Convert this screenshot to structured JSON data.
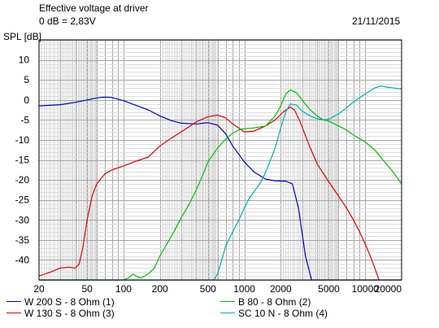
{
  "header": {
    "title": "Effective voltage at driver",
    "reference": "0 dB = 2,83V",
    "date": "21/11/2015"
  },
  "chart_data": {
    "type": "line",
    "x_scale": "log",
    "ylabel": "SPL [dB]",
    "xlim": [
      20,
      20000
    ],
    "ylim": [
      -45,
      15
    ],
    "x_ticks": [
      "20",
      "50",
      "100",
      "200",
      "500",
      "1000",
      "2000",
      "5000",
      "10000",
      "20000"
    ],
    "y_ticks": [
      "10",
      "5",
      "0",
      "-5",
      "-10",
      "-15",
      "-20",
      "-25",
      "-30",
      "-35",
      "-40"
    ],
    "grid": true,
    "legend_position": "bottom",
    "series": [
      {
        "name": "W 200 S - 8 Ohm (1)",
        "color": "#0000c0",
        "points": [
          [
            20,
            -1.5
          ],
          [
            30,
            -1.2
          ],
          [
            40,
            -0.6
          ],
          [
            50,
            0.0
          ],
          [
            60,
            0.5
          ],
          [
            70,
            0.7
          ],
          [
            80,
            0.6
          ],
          [
            100,
            -0.2
          ],
          [
            130,
            -1.5
          ],
          [
            160,
            -2.5
          ],
          [
            200,
            -4.0
          ],
          [
            250,
            -5.2
          ],
          [
            300,
            -5.8
          ],
          [
            400,
            -6.0
          ],
          [
            500,
            -5.7
          ],
          [
            600,
            -6.3
          ],
          [
            700,
            -8.5
          ],
          [
            800,
            -11.5
          ],
          [
            1000,
            -15.5
          ],
          [
            1200,
            -18.0
          ],
          [
            1500,
            -19.8
          ],
          [
            1800,
            -20.2
          ],
          [
            2200,
            -20.3
          ],
          [
            2500,
            -21.0
          ],
          [
            2800,
            -27.0
          ],
          [
            3200,
            -39.0
          ],
          [
            3600,
            -45.0
          ],
          [
            20000,
            -45.0
          ]
        ]
      },
      {
        "name": "W 130 S - 8 Ohm (3)",
        "color": "#e00000",
        "points": [
          [
            20,
            -44.0
          ],
          [
            25,
            -43.0
          ],
          [
            30,
            -42.0
          ],
          [
            35,
            -41.8
          ],
          [
            40,
            -42.0
          ],
          [
            43,
            -41.0
          ],
          [
            46,
            -37.0
          ],
          [
            50,
            -30.0
          ],
          [
            55,
            -24.0
          ],
          [
            60,
            -21.0
          ],
          [
            70,
            -18.5
          ],
          [
            80,
            -17.5
          ],
          [
            100,
            -16.5
          ],
          [
            130,
            -15.2
          ],
          [
            160,
            -14.3
          ],
          [
            200,
            -11.5
          ],
          [
            250,
            -9.5
          ],
          [
            300,
            -8.0
          ],
          [
            400,
            -5.5
          ],
          [
            500,
            -4.2
          ],
          [
            600,
            -3.8
          ],
          [
            700,
            -4.5
          ],
          [
            800,
            -6.0
          ],
          [
            1000,
            -8.0
          ],
          [
            1200,
            -7.8
          ],
          [
            1500,
            -6.5
          ],
          [
            1800,
            -5.0
          ],
          [
            2100,
            -3.0
          ],
          [
            2400,
            -1.8
          ],
          [
            2600,
            -2.5
          ],
          [
            2900,
            -5.5
          ],
          [
            3400,
            -11.0
          ],
          [
            4000,
            -16.0
          ],
          [
            5000,
            -20.5
          ],
          [
            6000,
            -24.0
          ],
          [
            7000,
            -27.0
          ],
          [
            8000,
            -30.0
          ],
          [
            9000,
            -33.0
          ],
          [
            10000,
            -36.0
          ],
          [
            11000,
            -39.0
          ],
          [
            12000,
            -42.0
          ],
          [
            13000,
            -45.0
          ]
        ]
      },
      {
        "name": "B 80 - 8 Ohm (2)",
        "color": "#00c000",
        "points": [
          [
            20,
            -45.0
          ],
          [
            100,
            -45.0
          ],
          [
            110,
            -44.5
          ],
          [
            120,
            -43.5
          ],
          [
            130,
            -44.2
          ],
          [
            140,
            -44.5
          ],
          [
            150,
            -44.0
          ],
          [
            160,
            -43.5
          ],
          [
            180,
            -42.0
          ],
          [
            200,
            -39.0
          ],
          [
            250,
            -34.0
          ],
          [
            300,
            -29.5
          ],
          [
            350,
            -26.0
          ],
          [
            400,
            -22.5
          ],
          [
            450,
            -19.0
          ],
          [
            500,
            -15.5
          ],
          [
            600,
            -12.0
          ],
          [
            700,
            -9.8
          ],
          [
            800,
            -8.3
          ],
          [
            900,
            -7.5
          ],
          [
            1000,
            -7.2
          ],
          [
            1200,
            -7.0
          ],
          [
            1500,
            -6.5
          ],
          [
            1800,
            -4.0
          ],
          [
            2000,
            -1.5
          ],
          [
            2200,
            1.5
          ],
          [
            2400,
            2.5
          ],
          [
            2700,
            1.8
          ],
          [
            3000,
            0.0
          ],
          [
            3500,
            -2.5
          ],
          [
            4000,
            -4.0
          ],
          [
            4500,
            -5.0
          ],
          [
            5000,
            -5.3
          ],
          [
            6000,
            -6.5
          ],
          [
            7000,
            -7.5
          ],
          [
            8000,
            -8.8
          ],
          [
            10000,
            -10.5
          ],
          [
            12000,
            -12.5
          ],
          [
            14000,
            -15.0
          ],
          [
            17000,
            -18.0
          ],
          [
            20000,
            -21.0
          ]
        ]
      },
      {
        "name": "SC 10 N - 8 Ohm (4)",
        "color": "#00b0b0",
        "points": [
          [
            20,
            -45.0
          ],
          [
            560,
            -45.0
          ],
          [
            600,
            -43.5
          ],
          [
            650,
            -40.0
          ],
          [
            700,
            -36.5
          ],
          [
            800,
            -33.0
          ],
          [
            900,
            -30.0
          ],
          [
            1000,
            -27.0
          ],
          [
            1100,
            -24.5
          ],
          [
            1200,
            -23.0
          ],
          [
            1300,
            -21.5
          ],
          [
            1400,
            -20.0
          ],
          [
            1500,
            -18.0
          ],
          [
            1600,
            -16.0
          ],
          [
            1800,
            -12.0
          ],
          [
            2000,
            -7.0
          ],
          [
            2200,
            -3.0
          ],
          [
            2400,
            -1.0
          ],
          [
            2700,
            -1.3
          ],
          [
            3000,
            -2.8
          ],
          [
            3500,
            -4.0
          ],
          [
            4000,
            -4.7
          ],
          [
            4500,
            -5.0
          ],
          [
            5000,
            -4.8
          ],
          [
            6000,
            -3.5
          ],
          [
            7000,
            -2.0
          ],
          [
            8000,
            -0.5
          ],
          [
            10000,
            1.5
          ],
          [
            12000,
            3.0
          ],
          [
            13500,
            3.5
          ],
          [
            15000,
            3.2
          ],
          [
            17000,
            3.0
          ],
          [
            20000,
            2.7
          ]
        ]
      }
    ]
  }
}
